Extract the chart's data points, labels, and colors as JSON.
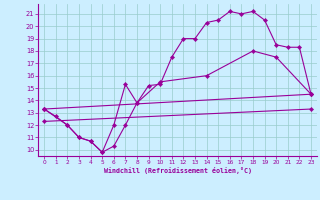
{
  "xlabel": "Windchill (Refroidissement éolien,°C)",
  "bg_color": "#cceeff",
  "line_color": "#990099",
  "grid_color": "#99cccc",
  "xlim": [
    -0.5,
    23.5
  ],
  "ylim": [
    9.5,
    21.8
  ],
  "xticks": [
    0,
    1,
    2,
    3,
    4,
    5,
    6,
    7,
    8,
    9,
    10,
    11,
    12,
    13,
    14,
    15,
    16,
    17,
    18,
    19,
    20,
    21,
    22,
    23
  ],
  "yticks": [
    10,
    11,
    12,
    13,
    14,
    15,
    16,
    17,
    18,
    19,
    20,
    21
  ],
  "series": [
    {
      "x": [
        0,
        1,
        2,
        3,
        4,
        5,
        6,
        7,
        8,
        9,
        10,
        11,
        12,
        13,
        14,
        15,
        16,
        17,
        18,
        19,
        20,
        21,
        22,
        23
      ],
      "y": [
        13.3,
        12.7,
        12.0,
        11.0,
        10.7,
        9.8,
        10.3,
        12.0,
        13.8,
        15.2,
        15.3,
        17.5,
        19.0,
        19.0,
        20.3,
        20.5,
        21.2,
        21.0,
        21.2,
        20.5,
        18.5,
        18.3,
        18.3,
        14.5
      ]
    },
    {
      "x": [
        0,
        2,
        3,
        4,
        5,
        6,
        7,
        8,
        10,
        14,
        18,
        20,
        23
      ],
      "y": [
        13.3,
        12.0,
        11.0,
        10.7,
        9.8,
        12.0,
        15.3,
        13.8,
        15.5,
        16.0,
        18.0,
        17.5,
        14.5
      ]
    },
    {
      "x": [
        0,
        23
      ],
      "y": [
        12.3,
        13.3
      ]
    },
    {
      "x": [
        0,
        23
      ],
      "y": [
        13.3,
        14.5
      ]
    }
  ]
}
